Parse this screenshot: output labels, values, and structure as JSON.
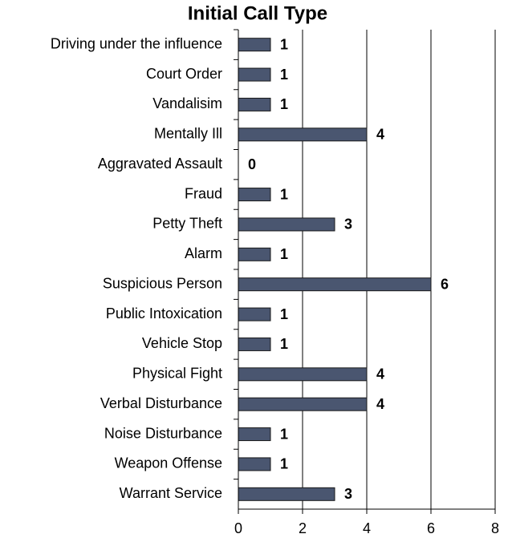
{
  "chart_data": {
    "type": "bar",
    "orientation": "horizontal",
    "title": "Initial Call Type",
    "categories": [
      "Driving under the influence",
      "Court Order",
      "Vandalisim",
      "Mentally Ill",
      "Aggravated Assault",
      "Fraud",
      "Petty Theft",
      "Alarm",
      "Suspicious Person",
      "Public Intoxication",
      "Vehicle Stop",
      "Physical Fight",
      "Verbal Disturbance",
      "Noise Disturbance",
      "Weapon Offense",
      "Warrant Service"
    ],
    "values": [
      1,
      1,
      1,
      4,
      0,
      1,
      3,
      1,
      6,
      1,
      1,
      4,
      4,
      1,
      1,
      3
    ],
    "color": "#4a5670",
    "xlim": [
      0,
      8
    ],
    "xticks": [
      0,
      2,
      4,
      6,
      8
    ],
    "grid": true
  }
}
